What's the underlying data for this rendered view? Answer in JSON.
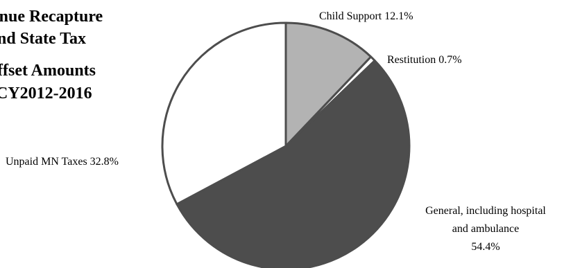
{
  "chart_data": {
    "type": "pie",
    "title_lines": [
      "enue Recapture",
      "nd State Tax",
      "ffset Amounts",
      "CY2012-2016"
    ],
    "slices": [
      {
        "label_lines": [
          "Child Support 12.1%"
        ],
        "value": 12.1,
        "color": "#b3b3b3"
      },
      {
        "label_lines": [
          "Restitution 0.7%"
        ],
        "value": 0.7,
        "color": "#ffffff"
      },
      {
        "label_lines": [
          "General, including hospital",
          "and ambulance",
          "54.4%"
        ],
        "value": 54.4,
        "color": "#4d4d4d"
      },
      {
        "label_lines": [
          "Unpaid MN Taxes 32.8%"
        ],
        "value": 32.8,
        "color": "#ffffff"
      }
    ],
    "start_angle_deg": 0,
    "direction": "clockwise",
    "stroke_color": "#4d4d4d",
    "legend": "none"
  }
}
